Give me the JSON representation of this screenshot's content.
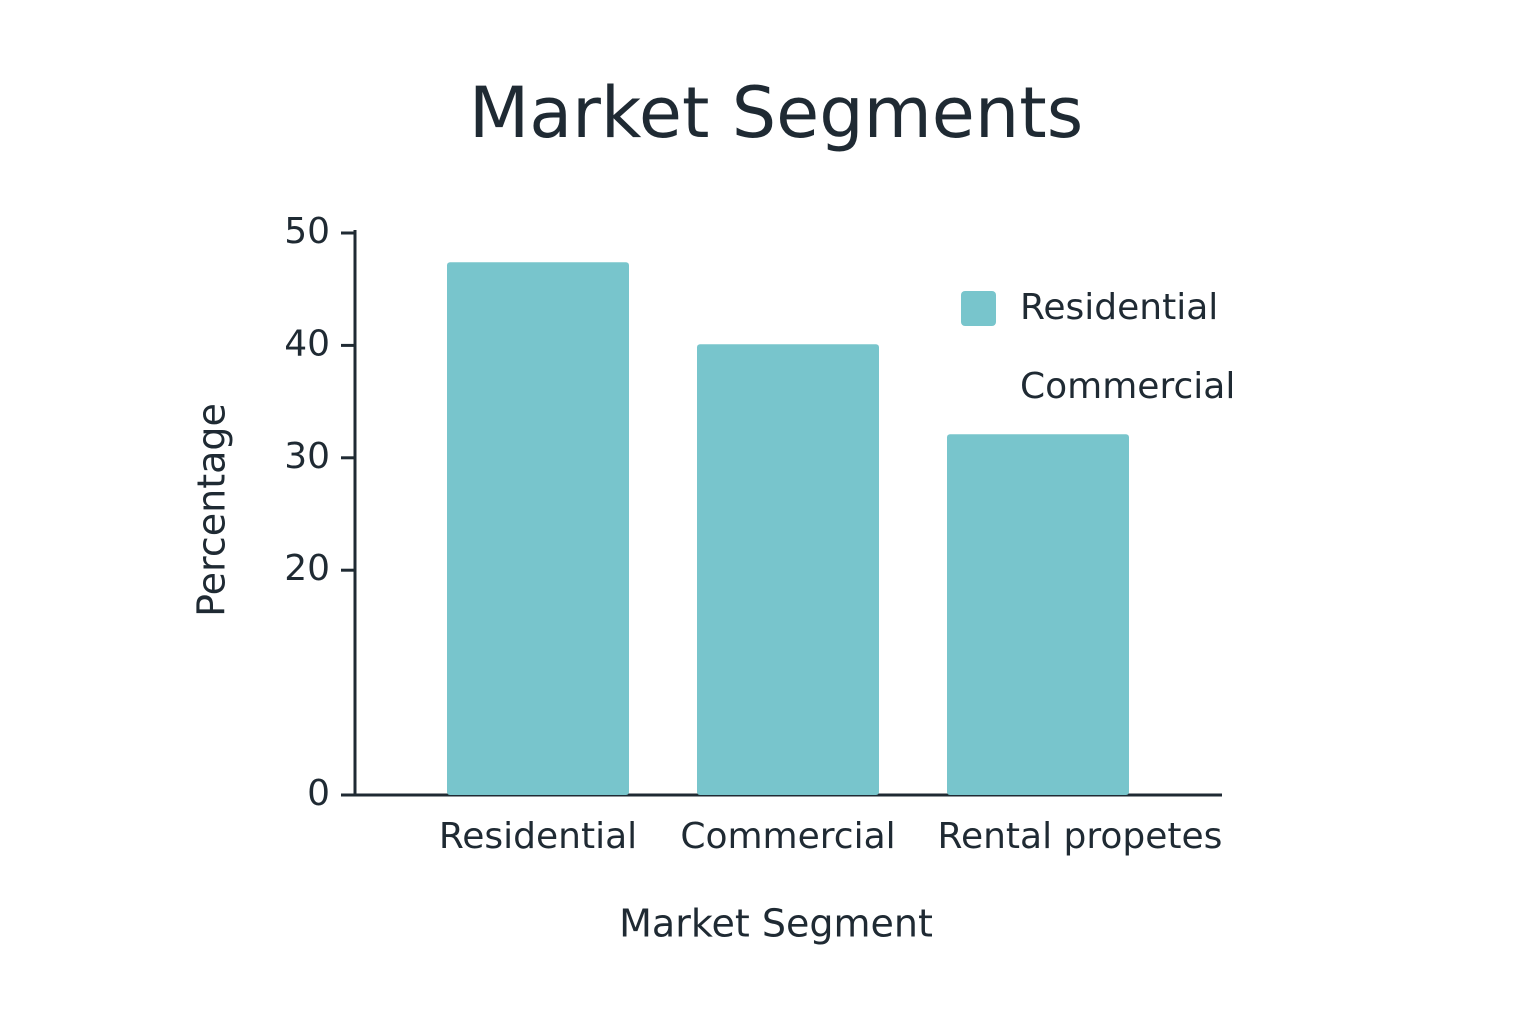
{
  "chart_data": {
    "type": "bar",
    "title": "Market Segments",
    "x_label": "Market Segment",
    "y_label": "Percentage",
    "categories": [
      "Residential",
      "Commercial",
      "Rental propetes"
    ],
    "values": [
      47.4,
      40.1,
      32.1
    ],
    "color": "#78c5cc",
    "ylim": [
      0,
      50
    ],
    "yticks": [
      0,
      20,
      30,
      40,
      50
    ],
    "legend": [
      {
        "name": "Residential",
        "color": "#78c5cc"
      },
      {
        "name": "Commercial"
      }
    ]
  }
}
